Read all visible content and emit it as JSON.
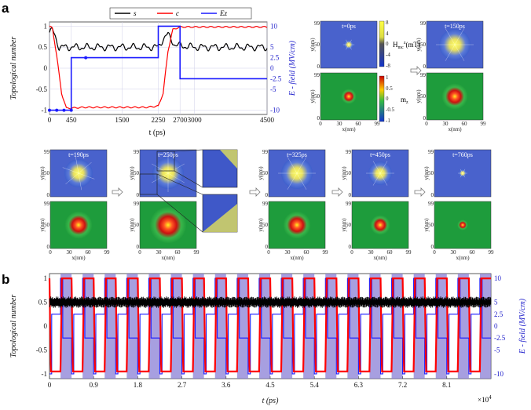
{
  "panel_labels": [
    "a",
    "b"
  ],
  "colors": {
    "s": "#000000",
    "c": "#ff0000",
    "ez": "#1a1aff",
    "purple_band": "#8a7fd6",
    "skyrmion_core": "#ffee22"
  },
  "chart_data": [
    {
      "type": "line",
      "panel": "a",
      "xlabel": "t (ps)",
      "ylabel": "Topological number",
      "y2label": "E - field (MV/cm)",
      "xlim": [
        0,
        4500
      ],
      "ylim": [
        -1.1,
        1.1
      ],
      "y2lim": [
        -11,
        11
      ],
      "x_ticks": [
        "0",
        "450",
        "1500",
        "2250",
        "2700",
        "3000",
        "4500"
      ],
      "x_tick_values": [
        0,
        450,
        1500,
        2250,
        2700,
        3000,
        4500
      ],
      "y_ticks": [
        "-1",
        "-0.5",
        "0",
        "0.5",
        "1"
      ],
      "y_tick_values": [
        -1,
        -0.5,
        0,
        0.5,
        1
      ],
      "y2_ticks": [
        "10",
        "5",
        "2.5",
        "0",
        "-2.5",
        "-5",
        "-10"
      ],
      "y2_tick_values": [
        10,
        5,
        2.5,
        0,
        -2.5,
        -5,
        -10
      ],
      "legend": [
        "s",
        "c",
        "Ez"
      ],
      "series": [
        {
          "name": "s",
          "x": [
            0,
            60,
            120,
            200,
            300,
            450,
            700,
            1000,
            1500,
            2000,
            2250,
            2350,
            2450,
            2600,
            3000,
            3500,
            4000,
            4500
          ],
          "y": [
            0.85,
            0.9,
            0.75,
            0.5,
            0.5,
            0.5,
            0.5,
            0.5,
            0.5,
            0.5,
            0.5,
            0.7,
            0.8,
            0.55,
            0.5,
            0.5,
            0.5,
            0.5
          ]
        },
        {
          "name": "c",
          "x": [
            0,
            60,
            150,
            250,
            350,
            450,
            700,
            1000,
            1500,
            2000,
            2250,
            2350,
            2450,
            2550,
            2700,
            3000,
            3500,
            4000,
            4500
          ],
          "y": [
            1.0,
            0.95,
            0.3,
            -0.6,
            -0.95,
            -0.95,
            -0.93,
            -0.93,
            -0.93,
            -0.93,
            -0.9,
            -0.6,
            0.4,
            0.92,
            0.98,
            0.98,
            0.98,
            0.98,
            0.98
          ]
        },
        {
          "name": "Ez",
          "x": [
            0,
            450,
            450,
            2250,
            2250,
            2700,
            2700,
            4500
          ],
          "y": [
            -10,
            -10,
            2.5,
            2.5,
            10,
            10,
            -2.5,
            -2.5
          ]
        }
      ]
    },
    {
      "type": "line",
      "panel": "b",
      "xlabel": "t (ps)",
      "ylabel": "Topological number",
      "y2label": "E - field (MV/cm)",
      "xlim": [
        0,
        90000
      ],
      "ylim": [
        -1.1,
        1.1
      ],
      "y2lim": [
        -11,
        11
      ],
      "x_ticks": [
        "0",
        "0.9",
        "1.8",
        "2.7",
        "3.6",
        "4.5",
        "5.4",
        "6.3",
        "7.2",
        "8.1"
      ],
      "x_tick_values": [
        0,
        9000,
        18000,
        27000,
        36000,
        45000,
        54000,
        63000,
        72000,
        81000
      ],
      "x_multiplier": "×10",
      "x_multiplier_exp": "4",
      "y_ticks": [
        "-1",
        "-0.5",
        "0",
        "0.5",
        "1"
      ],
      "y_tick_values": [
        -1,
        -0.5,
        0,
        0.5,
        1
      ],
      "y2_ticks": [
        "10",
        "5",
        "2.5",
        "0",
        "-2.5",
        "-5",
        "-10"
      ],
      "y2_tick_values": [
        10,
        5,
        2.5,
        0,
        -2.5,
        -5,
        -10
      ],
      "cycles": 20,
      "period_ps": 4500
    }
  ],
  "snapshots": {
    "top": [
      {
        "time": "t=0ps"
      },
      {
        "time": "t=150ps"
      }
    ],
    "bottom": [
      {
        "time": "t=190ps"
      },
      {
        "time": "t=250ps"
      },
      {
        "time": "t=325ps"
      },
      {
        "time": "t=450ps"
      },
      {
        "time": "t=760ps"
      }
    ],
    "axis": {
      "xlabel": "x(nm)",
      "ylabel": "y(nm)",
      "ticks": [
        "0",
        "30",
        "60",
        "99"
      ],
      "yticks_top": "99",
      "yticks_mid": "50",
      "yticks_bot": "0"
    },
    "colorbar_h": {
      "label": "H",
      "label_sub": "mc",
      "label_sup": "z",
      "unit": "(mT)",
      "ticks": [
        "8",
        "4",
        "0",
        "-4",
        "-8"
      ]
    },
    "colorbar_m": {
      "label": "m",
      "label_sub": "z",
      "ticks": [
        "1",
        "0.5",
        "0",
        "-0.5",
        "-1"
      ]
    }
  }
}
